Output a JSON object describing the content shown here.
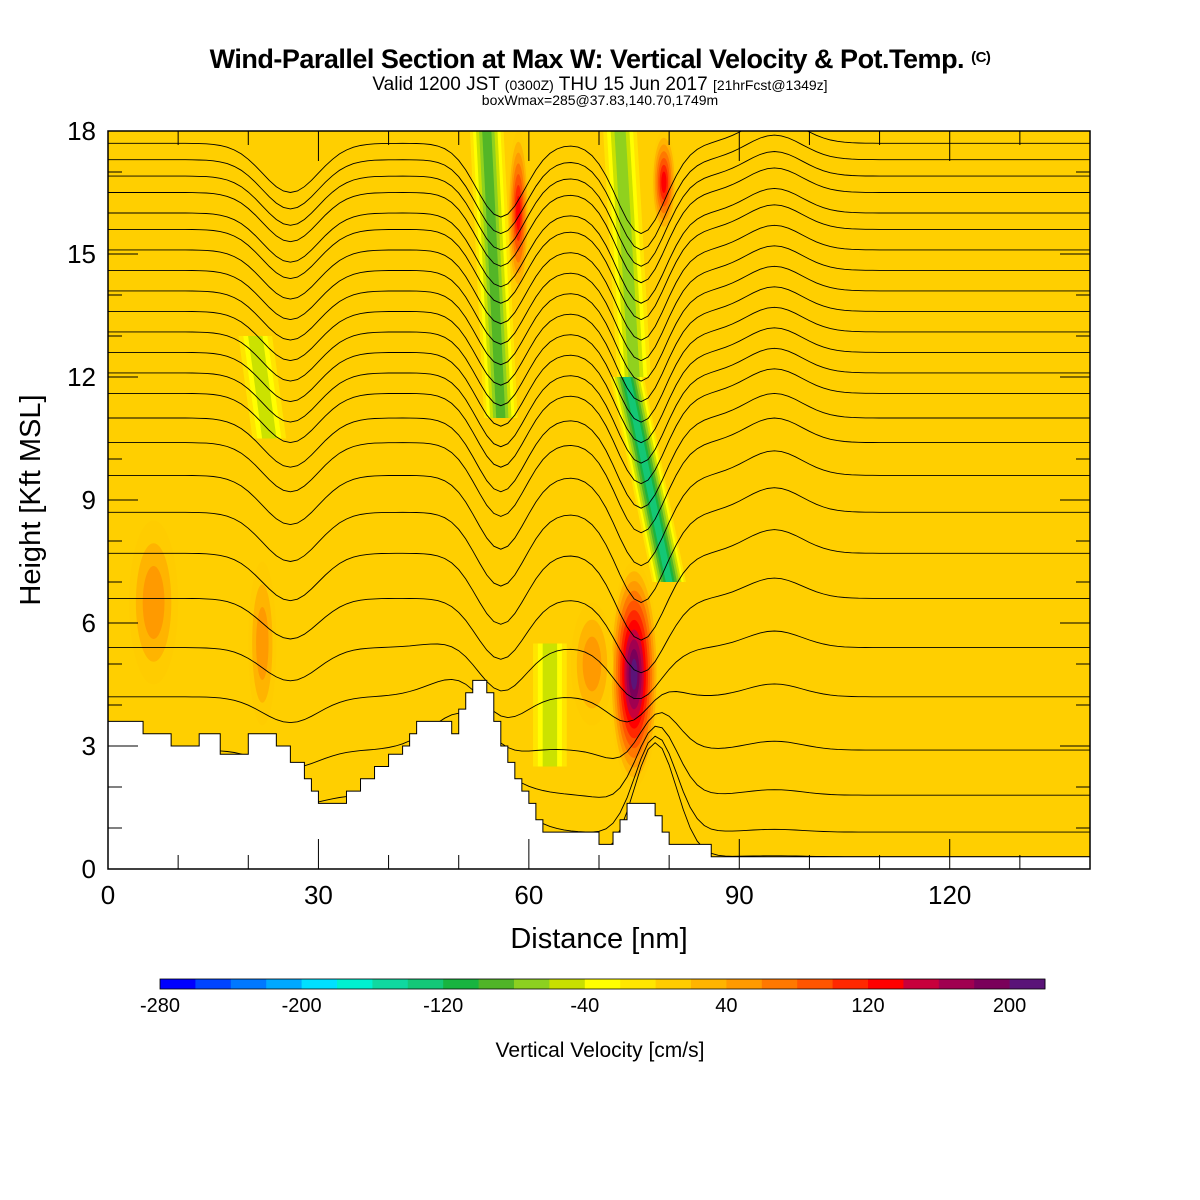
{
  "title": {
    "main": "Wind-Parallel Section at Max W: Vertical Velocity & Pot.Temp.",
    "copyright": "(C)",
    "valid_prefix": "Valid 1200 JST",
    "valid_utc": "(0300Z)",
    "valid_date": "THU 15 Jun 2017",
    "forecast": "[21hrFcst@1349z]",
    "box": "boxWmax=285@37.83,140.70,1749m"
  },
  "chart_data": {
    "type": "heatmap",
    "xlabel": "Distance [nm]",
    "ylabel": "Height [Kft MSL]",
    "xlim": [
      0,
      140
    ],
    "ylim": [
      0,
      18
    ],
    "x_ticks": [
      "0",
      "30",
      "60",
      "90",
      "120"
    ],
    "y_ticks": [
      "0",
      "3",
      "6",
      "9",
      "12",
      "15",
      "18"
    ],
    "colorbar": {
      "title": "Vertical Velocity [cm/s]",
      "min": -280,
      "max": 220,
      "step": 20,
      "tick_labels": [
        "-280",
        "-200",
        "-120",
        "-40",
        "40",
        "120",
        "200"
      ],
      "tick_values": [
        -280,
        -200,
        -120,
        -40,
        40,
        120,
        200
      ],
      "colors": [
        "#0000ff",
        "#0044ff",
        "#0078ff",
        "#00a8ff",
        "#00e0ff",
        "#00f0d0",
        "#10d8a0",
        "#14c878",
        "#18b440",
        "#50b428",
        "#8cd020",
        "#c8e000",
        "#ffff00",
        "#ffe600",
        "#ffcc00",
        "#ffb400",
        "#ff9a00",
        "#ff7800",
        "#ff5500",
        "#ff2800",
        "#ff0000",
        "#c8003c",
        "#a00050",
        "#7a005a",
        "#5a1478"
      ]
    },
    "terrain_kft": [
      [
        0,
        3.6
      ],
      [
        3,
        3.6
      ],
      [
        5,
        3.3
      ],
      [
        8,
        3.3
      ],
      [
        9,
        3.0
      ],
      [
        12,
        3.0
      ],
      [
        13,
        3.3
      ],
      [
        15,
        3.3
      ],
      [
        16,
        2.8
      ],
      [
        19,
        2.8
      ],
      [
        20,
        3.3
      ],
      [
        23,
        3.3
      ],
      [
        24,
        3.0
      ],
      [
        26,
        2.6
      ],
      [
        28,
        2.2
      ],
      [
        29,
        1.9
      ],
      [
        30,
        1.6
      ],
      [
        33,
        1.6
      ],
      [
        34,
        1.9
      ],
      [
        36,
        2.2
      ],
      [
        38,
        2.5
      ],
      [
        40,
        2.8
      ],
      [
        42,
        3.0
      ],
      [
        43,
        3.3
      ],
      [
        44,
        3.6
      ],
      [
        47,
        3.6
      ],
      [
        49,
        3.3
      ],
      [
        50,
        3.9
      ],
      [
        51,
        4.3
      ],
      [
        52,
        4.6
      ],
      [
        54,
        4.3
      ],
      [
        55,
        3.6
      ],
      [
        56,
        3.0
      ],
      [
        57,
        2.6
      ],
      [
        58,
        2.2
      ],
      [
        59,
        1.9
      ],
      [
        60,
        1.6
      ],
      [
        61,
        1.2
      ],
      [
        62,
        0.9
      ],
      [
        63,
        0.9
      ],
      [
        65,
        0.9
      ],
      [
        67,
        0.9
      ],
      [
        68,
        0.9
      ],
      [
        69,
        0.9
      ],
      [
        70,
        0.6
      ],
      [
        71,
        0.6
      ],
      [
        72,
        0.9
      ],
      [
        73,
        1.2
      ],
      [
        74,
        1.6
      ],
      [
        77,
        1.6
      ],
      [
        78,
        1.3
      ],
      [
        79,
        0.9
      ],
      [
        80,
        0.6
      ],
      [
        81,
        0.6
      ],
      [
        84,
        0.6
      ],
      [
        86,
        0.3
      ],
      [
        90,
        0.3
      ],
      [
        100,
        0.3
      ],
      [
        120,
        0.3
      ],
      [
        140,
        0.3
      ]
    ],
    "updraft_cores": [
      {
        "x_start": 71.5,
        "x_end": 78.5,
        "y_bottom": 2.0,
        "y_top": 7.5,
        "peak_w": 220
      },
      {
        "x_start": 57,
        "x_end": 60,
        "y_bottom": 14.0,
        "y_top": 18,
        "peak_w": 140
      },
      {
        "x_start": 77.5,
        "x_end": 81,
        "y_bottom": 15.5,
        "y_top": 18,
        "peak_w": 140
      },
      {
        "x_start": 3,
        "x_end": 10,
        "y_bottom": 4.5,
        "y_top": 8.5,
        "peak_w": 60
      },
      {
        "x_start": 20,
        "x_end": 24,
        "y_bottom": 3.5,
        "y_top": 7.5,
        "peak_w": 60
      },
      {
        "x_start": 66,
        "x_end": 72,
        "y_bottom": 3.5,
        "y_top": 6.5,
        "peak_w": 60
      }
    ],
    "downdraft_bands": [
      {
        "x_bottom": 56,
        "x_top": 54,
        "y_bottom": 11.0,
        "y_top": 18,
        "min_w": -100
      },
      {
        "x_bottom": 80,
        "x_top": 74,
        "y_bottom": 7.0,
        "y_top": 12.0,
        "min_w": -140
      },
      {
        "x_bottom": 75,
        "x_top": 73,
        "y_bottom": 12.0,
        "y_top": 18,
        "min_w": -80
      },
      {
        "x_bottom": 63,
        "x_top": 63,
        "y_bottom": 2.5,
        "y_top": 5.5,
        "min_w": -60
      },
      {
        "x_bottom": 23,
        "x_top": 21,
        "y_bottom": 10.5,
        "y_top": 13.0,
        "min_w": -60
      }
    ],
    "theta_contour_base_kft": [
      0.3,
      0.9,
      1.8,
      2.9,
      4.2,
      5.4,
      6.6,
      7.7,
      8.7,
      9.6,
      10.4,
      11.0,
      11.6,
      12.1,
      12.6,
      13.1,
      13.6,
      14.1,
      14.6,
      15.1,
      15.6,
      16.0,
      16.5,
      16.9,
      17.3,
      17.7
    ]
  }
}
